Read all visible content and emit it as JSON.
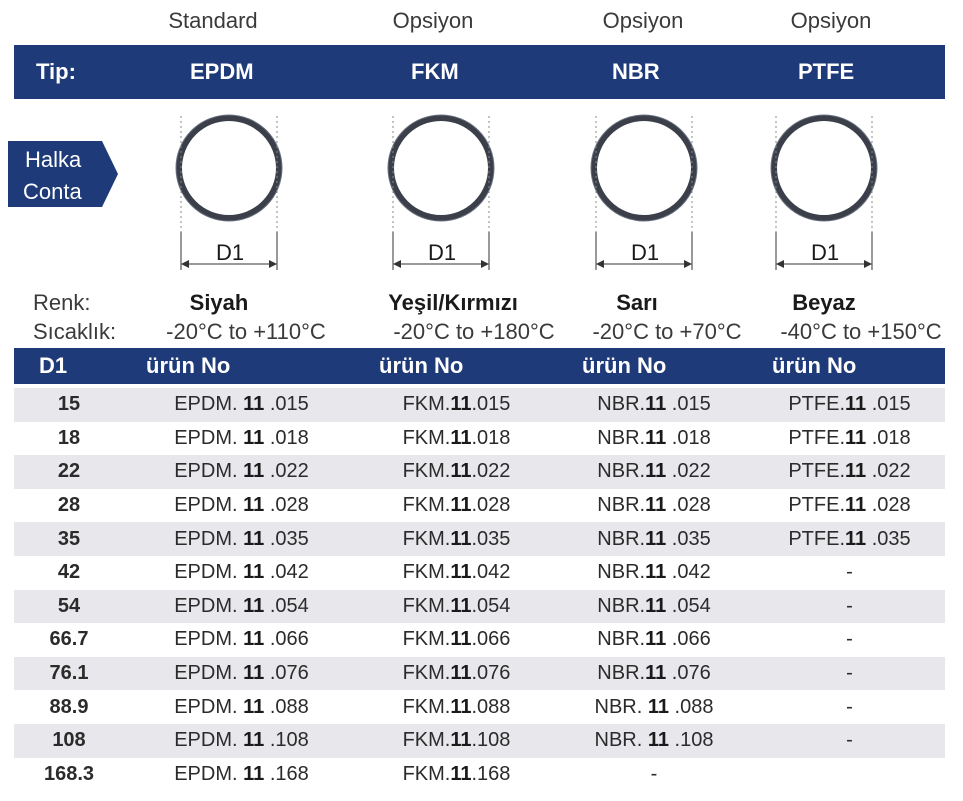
{
  "options": [
    "Standard",
    "Opsiyon",
    "Opsiyon",
    "Opsiyon"
  ],
  "header": {
    "tip_label": "Tip:",
    "types": [
      "EPDM",
      "FKM",
      "NBR",
      "PTFE"
    ]
  },
  "ring_tag": {
    "line1": "Halka",
    "line2": "Conta"
  },
  "dimension_label": "D1",
  "renk_label": "Renk:",
  "sicaklik_label": "Sıcaklık:",
  "colors": [
    "Siyah",
    "Yeşil/Kırmızı",
    "Sarı",
    "Beyaz"
  ],
  "temperatures": [
    "-20°C to +110°C",
    "-20°C to +180°C",
    "-20°C to +70°C",
    "-40°C to +150°C"
  ],
  "table_header": {
    "d1": "D1",
    "product": "ürün No"
  },
  "rows": [
    {
      "d1": "15",
      "epdm": [
        "EPDM. ",
        "11",
        " .015"
      ],
      "fkm": [
        "FKM.",
        "11",
        ".015"
      ],
      "nbr": [
        "NBR.",
        "11",
        " .015"
      ],
      "ptfe": [
        "PTFE.",
        "11",
        " .015"
      ]
    },
    {
      "d1": "18",
      "epdm": [
        "EPDM. ",
        "11",
        " .018"
      ],
      "fkm": [
        "FKM.",
        "11",
        ".018"
      ],
      "nbr": [
        "NBR.",
        "11",
        " .018"
      ],
      "ptfe": [
        "PTFE.",
        "11",
        " .018"
      ]
    },
    {
      "d1": "22",
      "epdm": [
        "EPDM. ",
        "11",
        " .022"
      ],
      "fkm": [
        "FKM.",
        "11",
        ".022"
      ],
      "nbr": [
        "NBR.",
        "11",
        " .022"
      ],
      "ptfe": [
        "PTFE.",
        "11",
        " .022"
      ]
    },
    {
      "d1": "28",
      "epdm": [
        "EPDM. ",
        "11",
        " .028"
      ],
      "fkm": [
        "FKM.",
        "11",
        ".028"
      ],
      "nbr": [
        "NBR.",
        "11",
        " .028"
      ],
      "ptfe": [
        "PTFE.",
        "11",
        " .028"
      ]
    },
    {
      "d1": "35",
      "epdm": [
        "EPDM. ",
        "11",
        " .035"
      ],
      "fkm": [
        "FKM.",
        "11",
        ".035"
      ],
      "nbr": [
        "NBR.",
        "11",
        " .035"
      ],
      "ptfe": [
        "PTFE.",
        "11",
        " .035"
      ]
    },
    {
      "d1": "42",
      "epdm": [
        "EPDM. ",
        "11",
        " .042"
      ],
      "fkm": [
        "FKM.",
        "11",
        ".042"
      ],
      "nbr": [
        "NBR.",
        "11",
        " .042"
      ],
      "ptfe": [
        "-",
        "",
        ""
      ]
    },
    {
      "d1": "54",
      "epdm": [
        "EPDM. ",
        "11",
        " .054"
      ],
      "fkm": [
        "FKM.",
        "11",
        ".054"
      ],
      "nbr": [
        "NBR.",
        "11",
        " .054"
      ],
      "ptfe": [
        "-",
        "",
        ""
      ]
    },
    {
      "d1": "66.7",
      "epdm": [
        "EPDM. ",
        "11",
        " .066"
      ],
      "fkm": [
        "FKM.",
        "11",
        ".066"
      ],
      "nbr": [
        "NBR.",
        "11",
        " .066"
      ],
      "ptfe": [
        "-",
        "",
        ""
      ]
    },
    {
      "d1": "76.1",
      "epdm": [
        "EPDM. ",
        "11",
        " .076"
      ],
      "fkm": [
        "FKM.",
        "11",
        ".076"
      ],
      "nbr": [
        "NBR.",
        "11",
        " .076"
      ],
      "ptfe": [
        "-",
        "",
        ""
      ]
    },
    {
      "d1": "88.9",
      "epdm": [
        "EPDM. ",
        "11",
        " .088"
      ],
      "fkm": [
        "FKM.",
        "11",
        ".088"
      ],
      "nbr": [
        "NBR. ",
        "11",
        " .088"
      ],
      "ptfe": [
        "-",
        "",
        ""
      ]
    },
    {
      "d1": "108",
      "epdm": [
        "EPDM. ",
        "11",
        " .108"
      ],
      "fkm": [
        "FKM.",
        "11",
        ".108"
      ],
      "nbr": [
        "NBR. ",
        "11",
        " .108"
      ],
      "ptfe": [
        "-",
        "",
        ""
      ]
    },
    {
      "d1": "168.3",
      "epdm": [
        "EPDM. ",
        "11",
        " .168"
      ],
      "fkm": [
        "FKM.",
        "11",
        ".168"
      ],
      "nbr": [
        "-",
        "",
        ""
      ],
      "ptfe": [
        "",
        "",
        ""
      ]
    }
  ],
  "accent_color": "#1e3a78"
}
